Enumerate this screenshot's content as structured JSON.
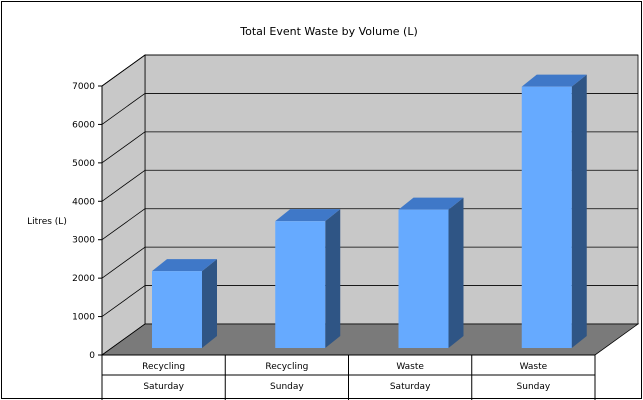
{
  "chart_data": {
    "type": "bar",
    "title": "Total Event Waste by Volume (L)",
    "xlabel": "",
    "ylabel": "Litres (L)",
    "ylim": [
      0,
      7000
    ],
    "yticks": [
      0,
      1000,
      2000,
      3000,
      4000,
      5000,
      6000,
      7000
    ],
    "categories": [
      [
        "Recycling",
        "Saturday"
      ],
      [
        "Recycling",
        "Sunday"
      ],
      [
        "Waste",
        "Saturday"
      ],
      [
        "Waste",
        "Sunday"
      ]
    ],
    "values": [
      2000,
      3300,
      3600,
      6800
    ],
    "grid": true,
    "legend": "none",
    "colors": {
      "bar_front": "#66aaff",
      "bar_top": "#3f78c8",
      "bar_side": "#2f5585",
      "back_wall": "#c8c8c8",
      "side_wall": "#c8c8c8",
      "floor": "#7a7a7a",
      "gridline": "#000000"
    }
  }
}
